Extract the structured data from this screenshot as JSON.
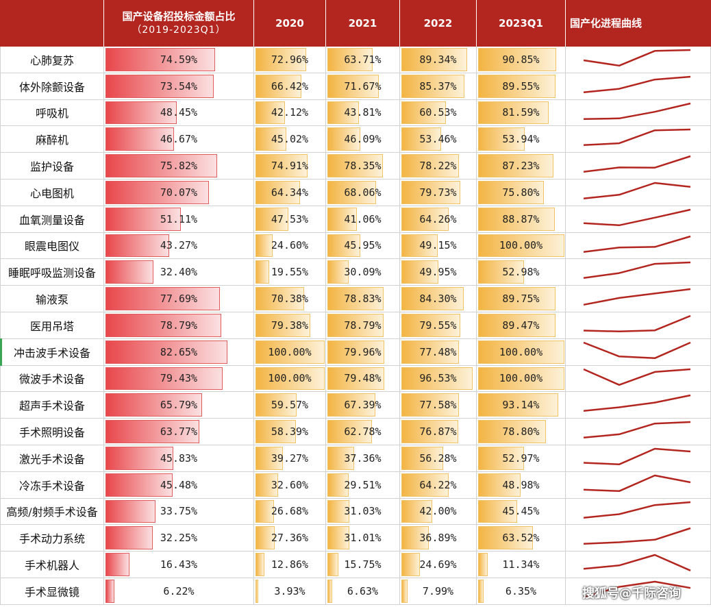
{
  "header": {
    "name_col": "",
    "share_col_line1": "国产设备招投标金额占比",
    "share_col_line2": "（2019-2023Q1）",
    "years": [
      "2020",
      "2021",
      "2022",
      "2023Q1"
    ],
    "spark_col": "国产化进程曲线"
  },
  "colors": {
    "header_bg": "#b3251f",
    "share_bar": "#e8474b",
    "year_bar": "#f3b443",
    "spark_line": "#b3251f"
  },
  "watermark": "搜狐号@千际咨询",
  "chart_data": {
    "type": "table",
    "columns": [
      "国产设备招投标金额占比（2019-2023Q1）",
      "2020",
      "2021",
      "2022",
      "2023Q1"
    ],
    "rows": [
      {
        "name": "心肺复苏",
        "share": "74.59%",
        "values": [
          "72.96%",
          "63.71%",
          "89.34%",
          "90.85%"
        ]
      },
      {
        "name": "体外除颤设备",
        "share": "73.54%",
        "values": [
          "66.42%",
          "71.67%",
          "85.37%",
          "89.55%"
        ]
      },
      {
        "name": "呼吸机",
        "share": "48.45%",
        "values": [
          "42.12%",
          "43.81%",
          "60.53%",
          "81.59%"
        ]
      },
      {
        "name": "麻醉机",
        "share": "46.67%",
        "values": [
          "45.02%",
          "46.09%",
          "53.46%",
          "53.94%"
        ]
      },
      {
        "name": "监护设备",
        "share": "75.82%",
        "values": [
          "74.91%",
          "78.35%",
          "78.22%",
          "87.23%"
        ]
      },
      {
        "name": "心电图机",
        "share": "70.07%",
        "values": [
          "64.34%",
          "68.06%",
          "79.73%",
          "75.80%"
        ]
      },
      {
        "name": "血氧测量设备",
        "share": "51.11%",
        "values": [
          "47.53%",
          "41.06%",
          "64.26%",
          "88.87%"
        ]
      },
      {
        "name": "眼震电图仪",
        "share": "43.27%",
        "values": [
          "24.60%",
          "45.95%",
          "49.15%",
          "100.00%"
        ]
      },
      {
        "name": "睡眠呼吸监测设备",
        "share": "32.40%",
        "values": [
          "19.55%",
          "30.09%",
          "49.95%",
          "52.98%"
        ]
      },
      {
        "name": "输液泵",
        "share": "77.69%",
        "values": [
          "70.38%",
          "78.83%",
          "84.30%",
          "89.75%"
        ]
      },
      {
        "name": "医用吊塔",
        "share": "78.79%",
        "values": [
          "79.38%",
          "78.79%",
          "79.55%",
          "89.47%"
        ]
      },
      {
        "name": "冲击波手术设备",
        "share": "82.65%",
        "values": [
          "100.00%",
          "79.96%",
          "77.48%",
          "100.00%"
        ]
      },
      {
        "name": "微波手术设备",
        "share": "79.43%",
        "values": [
          "100.00%",
          "79.48%",
          "96.53%",
          "100.00%"
        ]
      },
      {
        "name": "超声手术设备",
        "share": "65.79%",
        "values": [
          "59.57%",
          "67.39%",
          "77.58%",
          "93.14%"
        ]
      },
      {
        "name": "手术照明设备",
        "share": "63.77%",
        "values": [
          "58.39%",
          "62.78%",
          "76.87%",
          "78.80%"
        ]
      },
      {
        "name": "激光手术设备",
        "share": "45.83%",
        "values": [
          "39.27%",
          "37.36%",
          "56.28%",
          "52.97%"
        ]
      },
      {
        "name": "冷冻手术设备",
        "share": "45.48%",
        "values": [
          "32.60%",
          "29.51%",
          "64.22%",
          "48.98%"
        ]
      },
      {
        "name": "高频/射频手术设备",
        "share": "33.75%",
        "values": [
          "26.68%",
          "31.03%",
          "42.00%",
          "45.45%"
        ]
      },
      {
        "name": "手术动力系统",
        "share": "32.25%",
        "values": [
          "27.36%",
          "31.01%",
          "36.89%",
          "63.52%"
        ]
      },
      {
        "name": "手术机器人",
        "share": "16.43%",
        "values": [
          "12.86%",
          "15.75%",
          "24.69%",
          "11.34%"
        ]
      },
      {
        "name": "手术显微镜",
        "share": "6.22%",
        "values": [
          "3.93%",
          "6.63%",
          "7.99%",
          "6.35%"
        ]
      }
    ]
  }
}
